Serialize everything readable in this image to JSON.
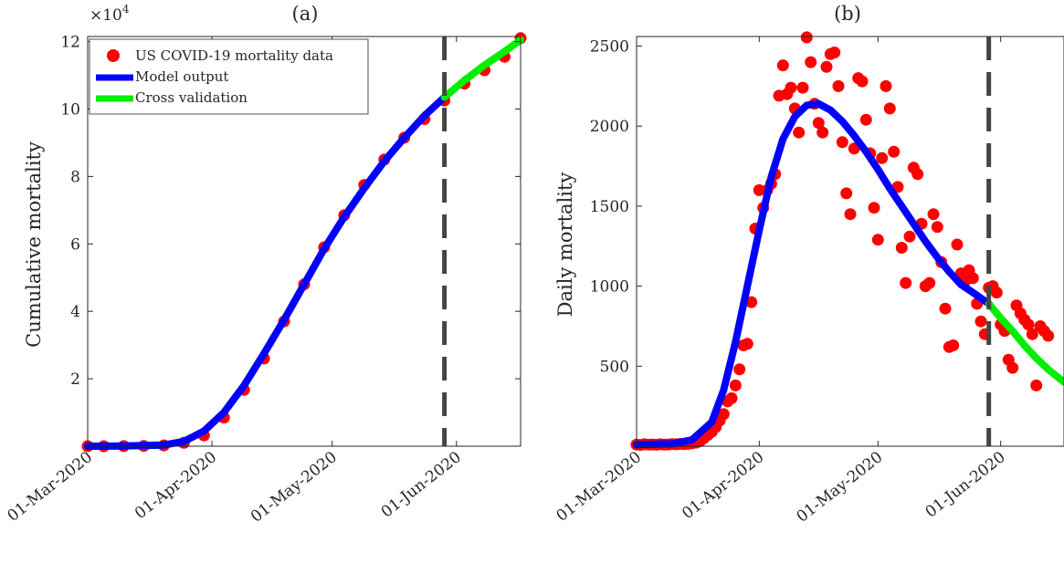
{
  "chart_data": [
    {
      "type": "scatter",
      "title": "(a)",
      "ylabel": "Cumulative mortality",
      "xlabel": "",
      "y_multiplier_label": "×10",
      "y_multiplier_exp": "4",
      "x_range": [
        "2020-03-01",
        "2020-06-17"
      ],
      "ylim": [
        0,
        121500
      ],
      "yticks": [
        20000,
        40000,
        60000,
        80000,
        100000,
        120000
      ],
      "ytick_labels": [
        "2",
        "4",
        "6",
        "8",
        "10",
        "12"
      ],
      "xticks": [
        "2020-03-01",
        "2020-04-01",
        "2020-05-01",
        "2020-06-01"
      ],
      "xtick_labels": [
        "01-Mar-2020",
        "01-Apr-2020",
        "01-May-2020",
        "01-Jun-2020"
      ],
      "cutoff_date": "2020-05-29",
      "grid": false,
      "legend_position": "top-left",
      "legend": [
        "US COVID-19 mortality data",
        "Model output",
        "Cross validation"
      ],
      "series": [
        {
          "name": "US COVID-19 mortality data",
          "style": "markers",
          "color": "#ff0000",
          "points": [
            [
              "2020-03-01",
              2
            ],
            [
              "2020-03-05",
              11
            ],
            [
              "2020-03-10",
              30
            ],
            [
              "2020-03-15",
              70
            ],
            [
              "2020-03-20",
              250
            ],
            [
              "2020-03-25",
              1000
            ],
            [
              "2020-03-30",
              3200
            ],
            [
              "2020-04-04",
              8500
            ],
            [
              "2020-04-09",
              16700
            ],
            [
              "2020-04-14",
              26000
            ],
            [
              "2020-04-19",
              37000
            ],
            [
              "2020-04-24",
              48000
            ],
            [
              "2020-04-29",
              59000
            ],
            [
              "2020-05-04",
              68500
            ],
            [
              "2020-05-09",
              77500
            ],
            [
              "2020-05-14",
              85000
            ],
            [
              "2020-05-19",
              91500
            ],
            [
              "2020-05-24",
              97000
            ],
            [
              "2020-05-29",
              102500
            ],
            [
              "2020-06-03",
              107500
            ],
            [
              "2020-06-08",
              111500
            ],
            [
              "2020-06-13",
              115500
            ],
            [
              "2020-06-17",
              121000
            ]
          ]
        },
        {
          "name": "Model output",
          "style": "line",
          "color": "#0000ff",
          "points": [
            [
              "2020-03-01",
              0
            ],
            [
              "2020-03-10",
              50
            ],
            [
              "2020-03-20",
              350
            ],
            [
              "2020-03-25",
              1400
            ],
            [
              "2020-03-30",
              4500
            ],
            [
              "2020-04-04",
              10000
            ],
            [
              "2020-04-09",
              18000
            ],
            [
              "2020-04-14",
              27500
            ],
            [
              "2020-04-19",
              37500
            ],
            [
              "2020-04-24",
              48000
            ],
            [
              "2020-04-29",
              58500
            ],
            [
              "2020-05-04",
              68000
            ],
            [
              "2020-05-09",
              76500
            ],
            [
              "2020-05-14",
              84500
            ],
            [
              "2020-05-19",
              91500
            ],
            [
              "2020-05-24",
              98000
            ],
            [
              "2020-05-29",
              103500
            ]
          ]
        },
        {
          "name": "Cross validation",
          "style": "line",
          "color": "#00ee00",
          "points": [
            [
              "2020-05-29",
              103500
            ],
            [
              "2020-06-03",
              108500
            ],
            [
              "2020-06-08",
              113000
            ],
            [
              "2020-06-13",
              117000
            ],
            [
              "2020-06-17",
              120500
            ]
          ]
        }
      ]
    },
    {
      "type": "scatter",
      "title": "(b)",
      "ylabel": "Daily mortality",
      "xlabel": "",
      "x_range": [
        "2020-03-01",
        "2020-06-17"
      ],
      "ylim": [
        0,
        2560
      ],
      "yticks": [
        500,
        1000,
        1500,
        2000,
        2500
      ],
      "ytick_labels": [
        "500",
        "1000",
        "1500",
        "2000",
        "2500"
      ],
      "xticks": [
        "2020-03-01",
        "2020-04-01",
        "2020-05-01",
        "2020-06-01"
      ],
      "xtick_labels": [
        "01-Mar-2020",
        "01-Apr-2020",
        "01-May-2020",
        "01-Jun-2020"
      ],
      "cutoff_date": "2020-05-29",
      "grid": false,
      "series": [
        {
          "name": "US COVID-19 mortality data",
          "style": "markers",
          "color": "#ff0000",
          "points": [
            [
              "2020-03-01",
              10
            ],
            [
              "2020-03-02",
              8
            ],
            [
              "2020-03-03",
              12
            ],
            [
              "2020-03-04",
              10
            ],
            [
              "2020-03-05",
              11
            ],
            [
              "2020-03-06",
              9
            ],
            [
              "2020-03-07",
              12
            ],
            [
              "2020-03-08",
              10
            ],
            [
              "2020-03-09",
              11
            ],
            [
              "2020-03-10",
              13
            ],
            [
              "2020-03-11",
              12
            ],
            [
              "2020-03-12",
              14
            ],
            [
              "2020-03-13",
              13
            ],
            [
              "2020-03-14",
              15
            ],
            [
              "2020-03-15",
              18
            ],
            [
              "2020-03-16",
              22
            ],
            [
              "2020-03-17",
              30
            ],
            [
              "2020-03-18",
              50
            ],
            [
              "2020-03-19",
              70
            ],
            [
              "2020-03-20",
              90
            ],
            [
              "2020-03-21",
              120
            ],
            [
              "2020-03-22",
              160
            ],
            [
              "2020-03-23",
              200
            ],
            [
              "2020-03-24",
              280
            ],
            [
              "2020-03-25",
              300
            ],
            [
              "2020-03-26",
              380
            ],
            [
              "2020-03-27",
              480
            ],
            [
              "2020-03-28",
              630
            ],
            [
              "2020-03-29",
              640
            ],
            [
              "2020-03-30",
              900
            ],
            [
              "2020-03-31",
              1360
            ],
            [
              "2020-04-01",
              1600
            ],
            [
              "2020-04-02",
              1490
            ],
            [
              "2020-04-03",
              1600
            ],
            [
              "2020-04-04",
              1640
            ],
            [
              "2020-04-05",
              1700
            ],
            [
              "2020-04-06",
              2190
            ],
            [
              "2020-04-07",
              2380
            ],
            [
              "2020-04-08",
              2200
            ],
            [
              "2020-04-09",
              2240
            ],
            [
              "2020-04-10",
              2110
            ],
            [
              "2020-04-11",
              1960
            ],
            [
              "2020-04-12",
              2240
            ],
            [
              "2020-04-13",
              2555
            ],
            [
              "2020-04-14",
              2400
            ],
            [
              "2020-04-15",
              2140
            ],
            [
              "2020-04-16",
              2020
            ],
            [
              "2020-04-17",
              1960
            ],
            [
              "2020-04-18",
              2370
            ],
            [
              "2020-04-19",
              2450
            ],
            [
              "2020-04-20",
              2460
            ],
            [
              "2020-04-21",
              2250
            ],
            [
              "2020-04-22",
              1900
            ],
            [
              "2020-04-23",
              1580
            ],
            [
              "2020-04-24",
              1450
            ],
            [
              "2020-04-25",
              1860
            ],
            [
              "2020-04-26",
              2300
            ],
            [
              "2020-04-27",
              2280
            ],
            [
              "2020-04-28",
              2040
            ],
            [
              "2020-04-29",
              1830
            ],
            [
              "2020-04-30",
              1490
            ],
            [
              "2020-05-01",
              1290
            ],
            [
              "2020-05-02",
              1800
            ],
            [
              "2020-05-03",
              2250
            ],
            [
              "2020-05-04",
              2110
            ],
            [
              "2020-05-05",
              1840
            ],
            [
              "2020-05-06",
              1620
            ],
            [
              "2020-05-07",
              1240
            ],
            [
              "2020-05-08",
              1020
            ],
            [
              "2020-05-09",
              1310
            ],
            [
              "2020-05-10",
              1740
            ],
            [
              "2020-05-11",
              1700
            ],
            [
              "2020-05-12",
              1390
            ],
            [
              "2020-05-13",
              1000
            ],
            [
              "2020-05-14",
              1020
            ],
            [
              "2020-05-15",
              1450
            ],
            [
              "2020-05-16",
              1370
            ],
            [
              "2020-05-17",
              1150
            ],
            [
              "2020-05-18",
              860
            ],
            [
              "2020-05-19",
              620
            ],
            [
              "2020-05-20",
              630
            ],
            [
              "2020-05-21",
              1260
            ],
            [
              "2020-05-22",
              1080
            ],
            [
              "2020-05-23",
              1030
            ],
            [
              "2020-05-24",
              1100
            ],
            [
              "2020-05-25",
              1050
            ],
            [
              "2020-05-26",
              890
            ],
            [
              "2020-05-27",
              780
            ],
            [
              "2020-05-28",
              700
            ],
            [
              "2020-05-29",
              990
            ],
            [
              "2020-05-30",
              1000
            ],
            [
              "2020-05-31",
              960
            ],
            [
              "2020-06-01",
              760
            ],
            [
              "2020-06-02",
              720
            ],
            [
              "2020-06-03",
              540
            ],
            [
              "2020-06-04",
              490
            ],
            [
              "2020-06-05",
              880
            ],
            [
              "2020-06-06",
              830
            ],
            [
              "2020-06-07",
              790
            ],
            [
              "2020-06-08",
              760
            ],
            [
              "2020-06-09",
              700
            ],
            [
              "2020-06-10",
              380
            ],
            [
              "2020-06-11",
              750
            ],
            [
              "2020-06-12",
              720
            ],
            [
              "2020-06-13",
              690
            ]
          ]
        },
        {
          "name": "Model output",
          "style": "line",
          "color": "#0000ff",
          "points": [
            [
              "2020-03-01",
              10
            ],
            [
              "2020-03-10",
              15
            ],
            [
              "2020-03-15",
              40
            ],
            [
              "2020-03-20",
              150
            ],
            [
              "2020-03-23",
              350
            ],
            [
              "2020-03-26",
              650
            ],
            [
              "2020-03-29",
              1000
            ],
            [
              "2020-04-01",
              1350
            ],
            [
              "2020-04-04",
              1680
            ],
            [
              "2020-04-07",
              1920
            ],
            [
              "2020-04-10",
              2060
            ],
            [
              "2020-04-13",
              2130
            ],
            [
              "2020-04-16",
              2140
            ],
            [
              "2020-04-19",
              2100
            ],
            [
              "2020-04-22",
              2030
            ],
            [
              "2020-04-25",
              1940
            ],
            [
              "2020-04-28",
              1840
            ],
            [
              "2020-05-01",
              1730
            ],
            [
              "2020-05-04",
              1610
            ],
            [
              "2020-05-07",
              1500
            ],
            [
              "2020-05-10",
              1390
            ],
            [
              "2020-05-13",
              1280
            ],
            [
              "2020-05-16",
              1180
            ],
            [
              "2020-05-19",
              1090
            ],
            [
              "2020-05-22",
              1010
            ],
            [
              "2020-05-25",
              960
            ],
            [
              "2020-05-29",
              890
            ]
          ]
        },
        {
          "name": "Cross validation",
          "style": "line",
          "color": "#00ee00",
          "points": [
            [
              "2020-05-29",
              890
            ],
            [
              "2020-06-01",
              800
            ],
            [
              "2020-06-04",
              720
            ],
            [
              "2020-06-07",
              630
            ],
            [
              "2020-06-10",
              550
            ],
            [
              "2020-06-13",
              480
            ],
            [
              "2020-06-16",
              420
            ],
            [
              "2020-06-17",
              400
            ]
          ]
        }
      ]
    }
  ]
}
